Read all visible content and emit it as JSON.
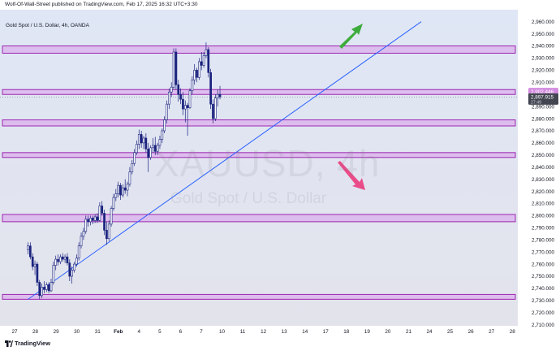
{
  "caption": {
    "text": "Wolf-Of-Wall-Street published on TradingView.com, Feb 17, 2025 16:32 UTC+3:30"
  },
  "chart": {
    "title": "Gold Spot / U.S. Dollar, 4h, OANDA",
    "watermark_symbol": "XAUUSD, 4h",
    "watermark_description": "Gold Spot / U.S. Dollar"
  },
  "footer": {
    "brand": "TradingView"
  },
  "colors": {
    "background_top": "#dfe6f5",
    "background_bottom": "#e3e3ec",
    "zone_fill": "#dcb6ec",
    "zone_border": "#9c27b0",
    "trendline": "#2962ff",
    "candle": "#1a237e",
    "up_arrow": "#3dac3d",
    "down_arrow": "#ea4c89",
    "price_badge": "#d38be0",
    "current_price_badge": "#434651"
  },
  "icons": {
    "logo": "tradingview-logo-icon",
    "up_arrow": "green-up-arrow-icon",
    "down_arrow": "pink-down-arrow-icon"
  },
  "chart_data": {
    "type": "candlestick",
    "title": "Gold Spot / U.S. Dollar, 4h, OANDA",
    "y_axis": {
      "ylim": [
        2710,
        2965
      ],
      "tick_labels": [
        "2,960.000",
        "2,950.000",
        "2,940.000",
        "2,930.000",
        "2,920.000",
        "2,910.000",
        "2,900.000",
        "2,890.000",
        "2,880.000",
        "2,870.000",
        "2,860.000",
        "2,850.000",
        "2,840.000",
        "2,830.000",
        "2,820.000",
        "2,810.000",
        "2,800.000",
        "2,790.000",
        "2,780.000",
        "2,770.000",
        "2,760.000",
        "2,750.000",
        "2,740.000",
        "2,730.000",
        "2,720.000",
        "2,710.000"
      ],
      "tick_values": [
        2960,
        2950,
        2940,
        2930,
        2920,
        2910,
        2900,
        2890,
        2880,
        2870,
        2860,
        2850,
        2840,
        2830,
        2820,
        2810,
        2800,
        2790,
        2780,
        2770,
        2760,
        2750,
        2740,
        2730,
        2720,
        2710
      ]
    },
    "x_axis": {
      "tick_labels": [
        "27",
        "28",
        "29",
        "30",
        "31",
        "Feb",
        "4",
        "5",
        "6",
        "7",
        "10",
        "11",
        "12",
        "13",
        "14",
        "17",
        "18",
        "19",
        "20",
        "21",
        "24",
        "25",
        "26",
        "27",
        "28"
      ]
    },
    "price_labels": [
      {
        "text": "2,902.446",
        "value": 2902.446
      },
      {
        "text": "2,897.915",
        "value": 2897.915,
        "subtext": "27:49"
      }
    ],
    "zones": [
      {
        "low": 2934,
        "high": 2940
      },
      {
        "low": 2900,
        "high": 2904
      },
      {
        "low": 2874,
        "high": 2879
      },
      {
        "low": 2848,
        "high": 2852
      },
      {
        "low": 2795,
        "high": 2801
      },
      {
        "low": 2731,
        "high": 2735
      }
    ],
    "trendline": {
      "from": {
        "x_bar": 0,
        "price": 2731
      },
      "to": {
        "x_bar": 170,
        "price": 2960
      }
    },
    "candles": [
      {
        "o": 2772,
        "h": 2778,
        "l": 2768,
        "c": 2775
      },
      {
        "o": 2775,
        "h": 2778,
        "l": 2764,
        "c": 2766
      },
      {
        "o": 2766,
        "h": 2769,
        "l": 2755,
        "c": 2758
      },
      {
        "o": 2758,
        "h": 2763,
        "l": 2751,
        "c": 2760
      },
      {
        "o": 2760,
        "h": 2762,
        "l": 2742,
        "c": 2745
      },
      {
        "o": 2745,
        "h": 2747,
        "l": 2731,
        "c": 2734
      },
      {
        "o": 2734,
        "h": 2744,
        "l": 2732,
        "c": 2741
      },
      {
        "o": 2741,
        "h": 2746,
        "l": 2736,
        "c": 2739
      },
      {
        "o": 2739,
        "h": 2745,
        "l": 2737,
        "c": 2743
      },
      {
        "o": 2743,
        "h": 2745,
        "l": 2736,
        "c": 2738
      },
      {
        "o": 2738,
        "h": 2748,
        "l": 2737,
        "c": 2745
      },
      {
        "o": 2745,
        "h": 2762,
        "l": 2743,
        "c": 2759
      },
      {
        "o": 2759,
        "h": 2767,
        "l": 2755,
        "c": 2764
      },
      {
        "o": 2764,
        "h": 2768,
        "l": 2759,
        "c": 2762
      },
      {
        "o": 2762,
        "h": 2768,
        "l": 2760,
        "c": 2766
      },
      {
        "o": 2766,
        "h": 2769,
        "l": 2762,
        "c": 2764
      },
      {
        "o": 2764,
        "h": 2768,
        "l": 2761,
        "c": 2766
      },
      {
        "o": 2766,
        "h": 2769,
        "l": 2759,
        "c": 2761
      },
      {
        "o": 2761,
        "h": 2764,
        "l": 2746,
        "c": 2750
      },
      {
        "o": 2750,
        "h": 2758,
        "l": 2744,
        "c": 2755
      },
      {
        "o": 2755,
        "h": 2762,
        "l": 2753,
        "c": 2760
      },
      {
        "o": 2760,
        "h": 2768,
        "l": 2758,
        "c": 2765
      },
      {
        "o": 2765,
        "h": 2778,
        "l": 2763,
        "c": 2775
      },
      {
        "o": 2775,
        "h": 2786,
        "l": 2773,
        "c": 2783
      },
      {
        "o": 2783,
        "h": 2790,
        "l": 2780,
        "c": 2787
      },
      {
        "o": 2787,
        "h": 2800,
        "l": 2785,
        "c": 2797
      },
      {
        "o": 2797,
        "h": 2800,
        "l": 2791,
        "c": 2795
      },
      {
        "o": 2795,
        "h": 2800,
        "l": 2792,
        "c": 2798
      },
      {
        "o": 2798,
        "h": 2800,
        "l": 2793,
        "c": 2796
      },
      {
        "o": 2796,
        "h": 2801,
        "l": 2794,
        "c": 2799
      },
      {
        "o": 2799,
        "h": 2802,
        "l": 2794,
        "c": 2796
      },
      {
        "o": 2796,
        "h": 2811,
        "l": 2795,
        "c": 2808
      },
      {
        "o": 2808,
        "h": 2812,
        "l": 2800,
        "c": 2802
      },
      {
        "o": 2802,
        "h": 2805,
        "l": 2784,
        "c": 2788
      },
      {
        "o": 2788,
        "h": 2795,
        "l": 2776,
        "c": 2781
      },
      {
        "o": 2781,
        "h": 2796,
        "l": 2779,
        "c": 2793
      },
      {
        "o": 2793,
        "h": 2808,
        "l": 2791,
        "c": 2806
      },
      {
        "o": 2806,
        "h": 2818,
        "l": 2804,
        "c": 2815
      },
      {
        "o": 2815,
        "h": 2822,
        "l": 2812,
        "c": 2818
      },
      {
        "o": 2818,
        "h": 2828,
        "l": 2815,
        "c": 2825
      },
      {
        "o": 2825,
        "h": 2827,
        "l": 2813,
        "c": 2817
      },
      {
        "o": 2817,
        "h": 2826,
        "l": 2815,
        "c": 2823
      },
      {
        "o": 2823,
        "h": 2830,
        "l": 2818,
        "c": 2821
      },
      {
        "o": 2821,
        "h": 2828,
        "l": 2816,
        "c": 2826
      },
      {
        "o": 2826,
        "h": 2840,
        "l": 2824,
        "c": 2836
      },
      {
        "o": 2836,
        "h": 2846,
        "l": 2834,
        "c": 2843
      },
      {
        "o": 2843,
        "h": 2855,
        "l": 2841,
        "c": 2852
      },
      {
        "o": 2852,
        "h": 2862,
        "l": 2850,
        "c": 2859
      },
      {
        "o": 2859,
        "h": 2871,
        "l": 2855,
        "c": 2867
      },
      {
        "o": 2867,
        "h": 2870,
        "l": 2856,
        "c": 2860
      },
      {
        "o": 2860,
        "h": 2866,
        "l": 2855,
        "c": 2864
      },
      {
        "o": 2864,
        "h": 2868,
        "l": 2852,
        "c": 2855
      },
      {
        "o": 2855,
        "h": 2860,
        "l": 2836,
        "c": 2848
      },
      {
        "o": 2848,
        "h": 2858,
        "l": 2846,
        "c": 2856
      },
      {
        "o": 2856,
        "h": 2864,
        "l": 2852,
        "c": 2858
      },
      {
        "o": 2858,
        "h": 2865,
        "l": 2850,
        "c": 2853
      },
      {
        "o": 2853,
        "h": 2860,
        "l": 2850,
        "c": 2858
      },
      {
        "o": 2858,
        "h": 2866,
        "l": 2855,
        "c": 2863
      },
      {
        "o": 2863,
        "h": 2872,
        "l": 2860,
        "c": 2870
      },
      {
        "o": 2870,
        "h": 2882,
        "l": 2868,
        "c": 2879
      },
      {
        "o": 2879,
        "h": 2895,
        "l": 2876,
        "c": 2892
      },
      {
        "o": 2892,
        "h": 2905,
        "l": 2888,
        "c": 2902
      },
      {
        "o": 2902,
        "h": 2910,
        "l": 2898,
        "c": 2906
      },
      {
        "o": 2906,
        "h": 2938,
        "l": 2904,
        "c": 2935
      },
      {
        "o": 2935,
        "h": 2938,
        "l": 2904,
        "c": 2908
      },
      {
        "o": 2908,
        "h": 2912,
        "l": 2894,
        "c": 2900
      },
      {
        "o": 2900,
        "h": 2905,
        "l": 2892,
        "c": 2896
      },
      {
        "o": 2896,
        "h": 2902,
        "l": 2883,
        "c": 2888
      },
      {
        "o": 2888,
        "h": 2895,
        "l": 2877,
        "c": 2891
      },
      {
        "o": 2891,
        "h": 2893,
        "l": 2866,
        "c": 2889
      },
      {
        "o": 2889,
        "h": 2905,
        "l": 2888,
        "c": 2903
      },
      {
        "o": 2903,
        "h": 2915,
        "l": 2900,
        "c": 2912
      },
      {
        "o": 2912,
        "h": 2925,
        "l": 2908,
        "c": 2920
      },
      {
        "o": 2920,
        "h": 2922,
        "l": 2910,
        "c": 2914
      },
      {
        "o": 2914,
        "h": 2930,
        "l": 2912,
        "c": 2927
      },
      {
        "o": 2927,
        "h": 2935,
        "l": 2920,
        "c": 2924
      },
      {
        "o": 2924,
        "h": 2935,
        "l": 2922,
        "c": 2932
      },
      {
        "o": 2932,
        "h": 2943,
        "l": 2930,
        "c": 2937
      },
      {
        "o": 2937,
        "h": 2939,
        "l": 2914,
        "c": 2918
      },
      {
        "o": 2918,
        "h": 2921,
        "l": 2888,
        "c": 2892
      },
      {
        "o": 2892,
        "h": 2896,
        "l": 2876,
        "c": 2880
      },
      {
        "o": 2880,
        "h": 2900,
        "l": 2878,
        "c": 2897
      },
      {
        "o": 2897,
        "h": 2904,
        "l": 2890,
        "c": 2900
      },
      {
        "o": 2900,
        "h": 2907,
        "l": 2896,
        "c": 2898
      }
    ]
  }
}
